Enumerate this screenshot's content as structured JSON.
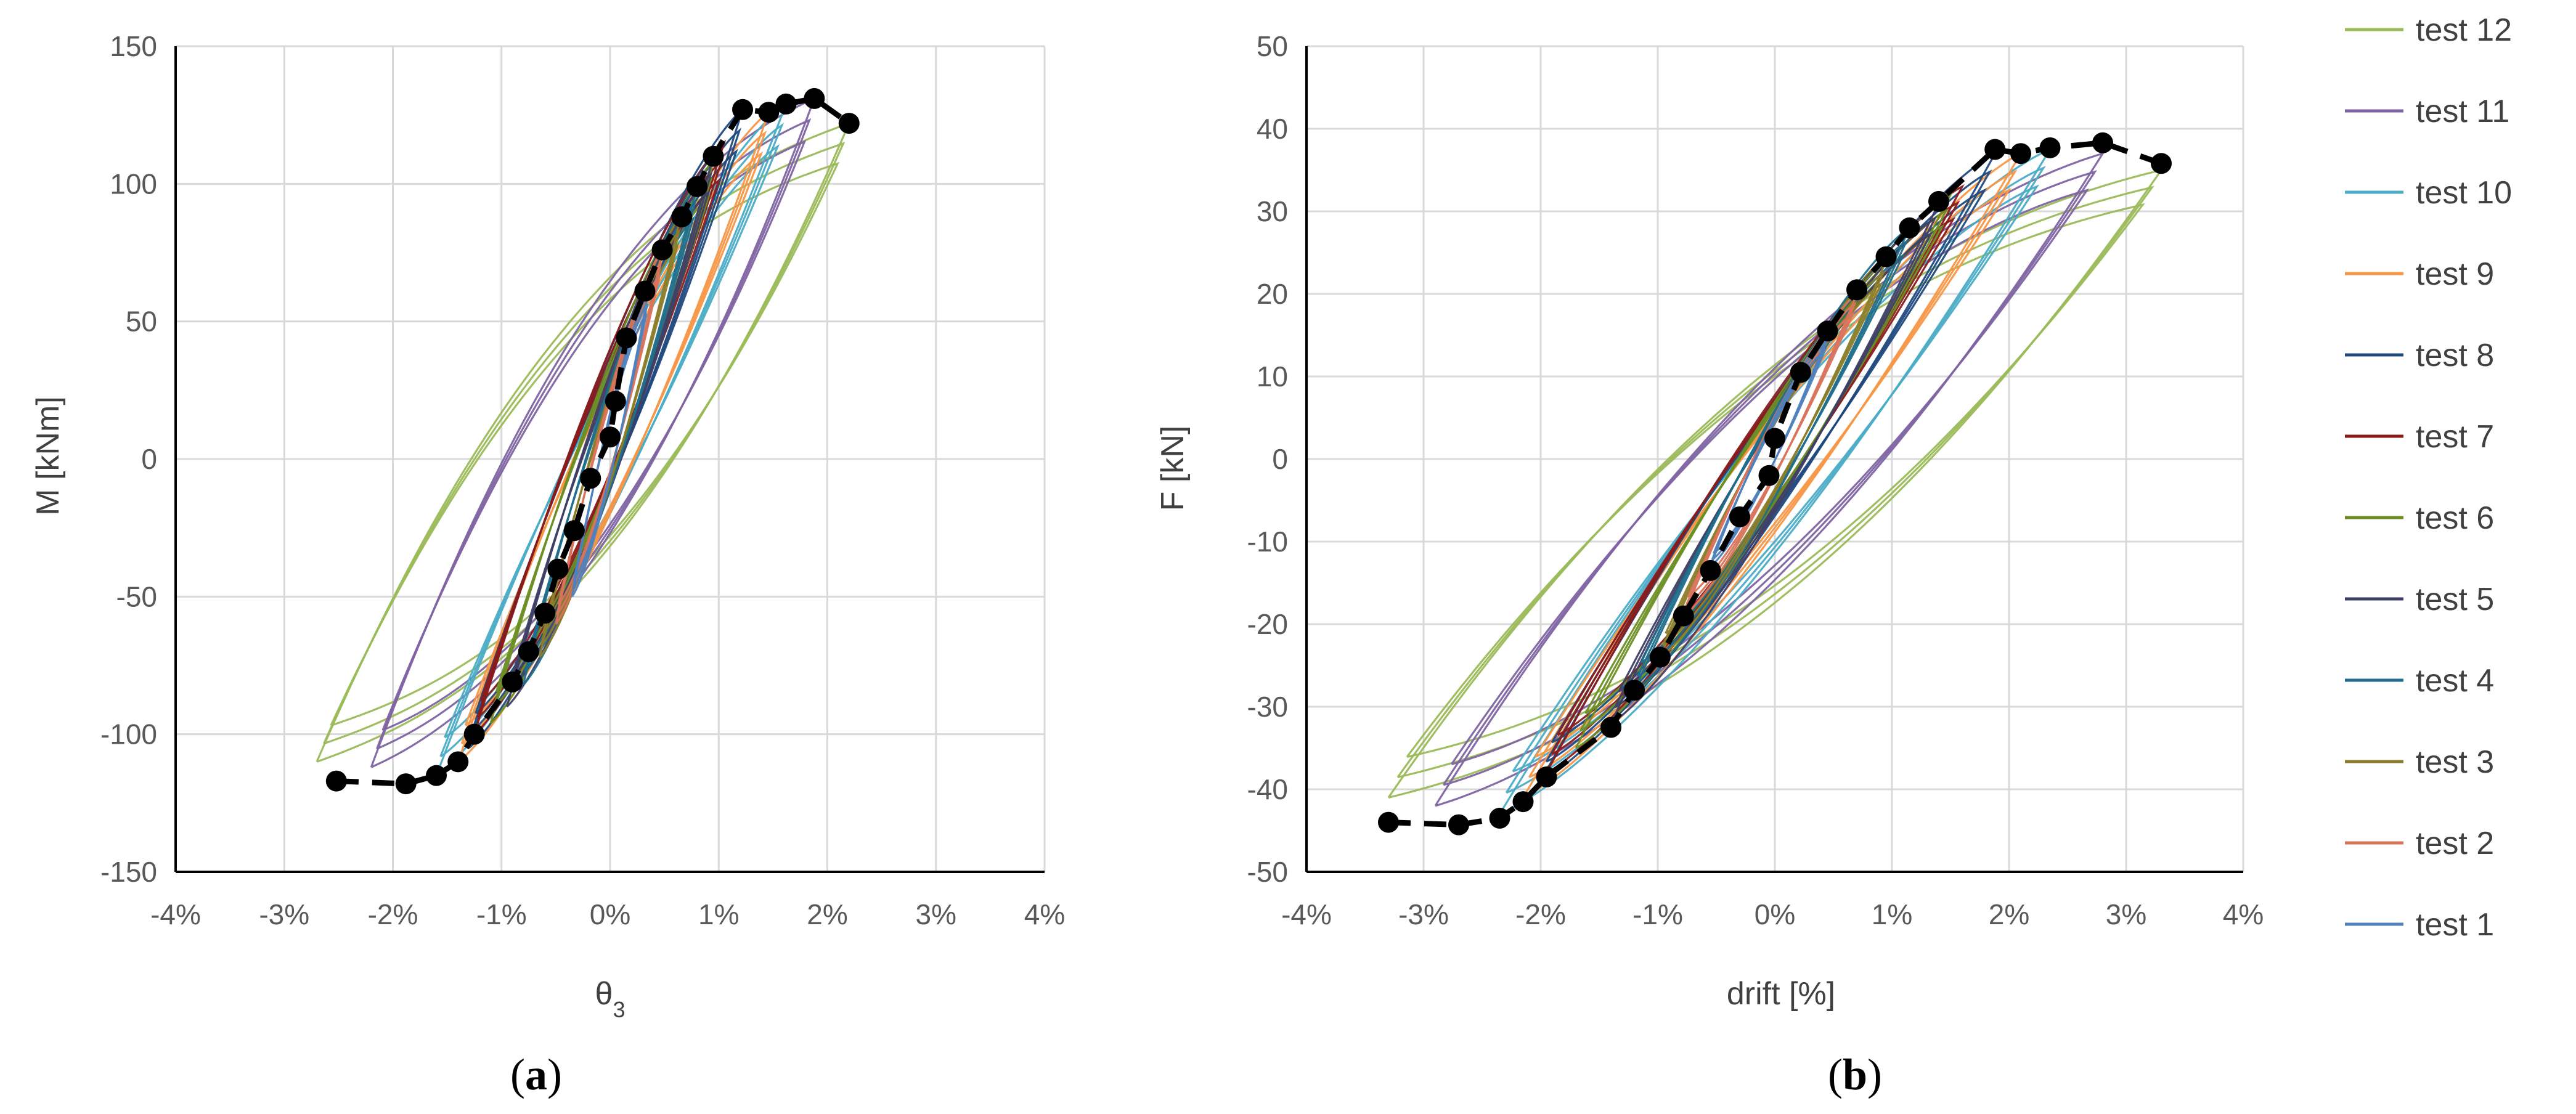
{
  "chart_data": [
    {
      "type": "line",
      "panel": "a",
      "caption_open": "(",
      "caption_letter": "a",
      "caption_close": ")",
      "xlabel": "θ3",
      "xlabel_base": "θ",
      "xlabel_sub": "3",
      "ylabel": "M [kNm]",
      "xlim": [
        -4,
        4
      ],
      "ylim": [
        -150,
        150
      ],
      "xticks": [
        -4,
        -3,
        -2,
        -1,
        0,
        1,
        2,
        3,
        4
      ],
      "xtick_labels": [
        "-4%",
        "-3%",
        "-2%",
        "-1%",
        "0%",
        "1%",
        "2%",
        "3%",
        "4%"
      ],
      "yticks": [
        -150,
        -100,
        -50,
        0,
        50,
        100,
        150
      ],
      "ytick_labels": [
        "-150",
        "-100",
        "-50",
        "0",
        "50",
        "100",
        "150"
      ],
      "grid": true,
      "envelope": {
        "style": "dashed black with markers",
        "x": [
          -2.52,
          -1.88,
          -1.6,
          -1.4,
          -1.25,
          -0.9,
          -0.75,
          -0.6,
          -0.48,
          -0.33,
          -0.18,
          0,
          0.05,
          0.15,
          0.32,
          0.48,
          0.66,
          0.8,
          0.95,
          1.22,
          1.46,
          1.62,
          1.88,
          2.2
        ],
        "y": [
          -117,
          -118,
          -115,
          -110,
          -100,
          -81,
          -70,
          -56,
          -40,
          -26,
          -7,
          8,
          21,
          44,
          61,
          76,
          88,
          99,
          110,
          127,
          126,
          129,
          131,
          122
        ]
      },
      "series": [
        {
          "name": "test 1",
          "x_max": 0.35,
          "y_max": 60,
          "x_min": -0.35,
          "y_min": -50,
          "pinch": 0.35
        },
        {
          "name": "test 2",
          "x_max": 0.48,
          "y_max": 76,
          "x_min": -0.5,
          "y_min": -60,
          "pinch": 0.35
        },
        {
          "name": "test 3",
          "x_max": 0.65,
          "y_max": 88,
          "x_min": -0.65,
          "y_min": -72,
          "pinch": 0.35
        },
        {
          "name": "test 4",
          "x_max": 0.8,
          "y_max": 99,
          "x_min": -0.8,
          "y_min": -82,
          "pinch": 0.35
        },
        {
          "name": "test 5",
          "x_max": 0.95,
          "y_max": 110,
          "x_min": -0.95,
          "y_min": -90,
          "pinch": 0.35
        },
        {
          "name": "test 6",
          "x_max": 0.95,
          "y_max": 108,
          "x_min": -1.1,
          "y_min": -96,
          "pinch": 0.35
        },
        {
          "name": "test 7",
          "x_max": 1.05,
          "y_max": 115,
          "x_min": -1.25,
          "y_min": -100,
          "pinch": 0.35
        },
        {
          "name": "test 8",
          "x_max": 1.22,
          "y_max": 127,
          "x_min": -1.3,
          "y_min": -105,
          "pinch": 0.35
        },
        {
          "name": "test 9",
          "x_max": 1.46,
          "y_max": 126,
          "x_min": -1.4,
          "y_min": -110,
          "pinch": 0.35
        },
        {
          "name": "test 10",
          "x_max": 1.62,
          "y_max": 129,
          "x_min": -1.6,
          "y_min": -115,
          "pinch": 0.35
        },
        {
          "name": "test 11",
          "x_max": 1.88,
          "y_max": 131,
          "x_min": -2.2,
          "y_min": -112,
          "pinch": 0.75
        },
        {
          "name": "test 12",
          "x_max": 2.2,
          "y_max": 122,
          "x_min": -2.7,
          "y_min": -110,
          "pinch": 0.9
        }
      ]
    },
    {
      "type": "line",
      "panel": "b",
      "caption_open": "(",
      "caption_letter": "b",
      "caption_close": ")",
      "xlabel": "drift [%]",
      "ylabel": "F [kN]",
      "xlim": [
        -4,
        4
      ],
      "ylim": [
        -50,
        50
      ],
      "xticks": [
        -4,
        -3,
        -2,
        -1,
        0,
        1,
        2,
        3,
        4
      ],
      "xtick_labels": [
        "-4%",
        "-3%",
        "-2%",
        "-1%",
        "0%",
        "1%",
        "2%",
        "3%",
        "4%"
      ],
      "yticks": [
        -50,
        -40,
        -30,
        -20,
        -10,
        0,
        10,
        20,
        30,
        40,
        50
      ],
      "ytick_labels": [
        "-50",
        "-40",
        "-30",
        "-20",
        "-10",
        "0",
        "10",
        "20",
        "30",
        "40",
        "50"
      ],
      "grid": true,
      "envelope": {
        "style": "dashed black with markers",
        "x": [
          -3.3,
          -2.7,
          -2.35,
          -2.15,
          -1.95,
          -1.4,
          -1.2,
          -0.98,
          -0.78,
          -0.55,
          -0.3,
          -0.05,
          0,
          0.22,
          0.45,
          0.7,
          0.95,
          1.15,
          1.4,
          1.88,
          2.1,
          2.35,
          2.8,
          3.3
        ],
        "y": [
          -44,
          -44.3,
          -43.5,
          -41.5,
          -38.5,
          -32.5,
          -28,
          -24,
          -19,
          -13.5,
          -7,
          -2,
          2.5,
          10.5,
          15.5,
          20.5,
          24.5,
          28,
          31.2,
          37.5,
          37,
          37.7,
          38.3,
          35.8
        ]
      },
      "series": [
        {
          "name": "test 1",
          "x_max": 0.45,
          "y_max": 15,
          "x_min": -0.55,
          "y_min": -13,
          "pinch": 0.3
        },
        {
          "name": "test 2",
          "x_max": 0.7,
          "y_max": 20,
          "x_min": -0.78,
          "y_min": -19,
          "pinch": 0.3
        },
        {
          "name": "test 3",
          "x_max": 0.95,
          "y_max": 24,
          "x_min": -0.98,
          "y_min": -24,
          "pinch": 0.3
        },
        {
          "name": "test 4",
          "x_max": 1.15,
          "y_max": 28,
          "x_min": -1.2,
          "y_min": -28,
          "pinch": 0.3
        },
        {
          "name": "test 5",
          "x_max": 1.4,
          "y_max": 31,
          "x_min": -1.4,
          "y_min": -32,
          "pinch": 0.3
        },
        {
          "name": "test 6",
          "x_max": 1.5,
          "y_max": 32,
          "x_min": -1.7,
          "y_min": -35,
          "pinch": 0.3
        },
        {
          "name": "test 7",
          "x_max": 1.6,
          "y_max": 33,
          "x_min": -1.95,
          "y_min": -38,
          "pinch": 0.3
        },
        {
          "name": "test 8",
          "x_max": 1.88,
          "y_max": 37,
          "x_min": -2.0,
          "y_min": -39,
          "pinch": 0.3
        },
        {
          "name": "test 9",
          "x_max": 2.1,
          "y_max": 37,
          "x_min": -2.15,
          "y_min": -41,
          "pinch": 0.3
        },
        {
          "name": "test 10",
          "x_max": 2.35,
          "y_max": 37.5,
          "x_min": -2.35,
          "y_min": -43,
          "pinch": 0.35
        },
        {
          "name": "test 11",
          "x_max": 2.8,
          "y_max": 37,
          "x_min": -2.9,
          "y_min": -42,
          "pinch": 0.6
        },
        {
          "name": "test 12",
          "x_max": 3.3,
          "y_max": 35,
          "x_min": -3.3,
          "y_min": -41,
          "pinch": 0.75
        }
      ]
    }
  ],
  "legend": {
    "placement": "right",
    "items": [
      {
        "label": "test 12",
        "color": "#9BBB59"
      },
      {
        "label": "test 11",
        "color": "#8064A2"
      },
      {
        "label": "test 10",
        "color": "#4BACC6"
      },
      {
        "label": "test 9",
        "color": "#F79646"
      },
      {
        "label": "test 8",
        "color": "#1F497D"
      },
      {
        "label": "test 7",
        "color": "#8B1A1A"
      },
      {
        "label": "test 6",
        "color": "#6B8E23"
      },
      {
        "label": "test 5",
        "color": "#3F3F66"
      },
      {
        "label": "test 4",
        "color": "#1F6E8C"
      },
      {
        "label": "test 3",
        "color": "#8B7D2A"
      },
      {
        "label": "test 2",
        "color": "#D9735B"
      },
      {
        "label": "test 1",
        "color": "#4F81BD"
      }
    ]
  }
}
